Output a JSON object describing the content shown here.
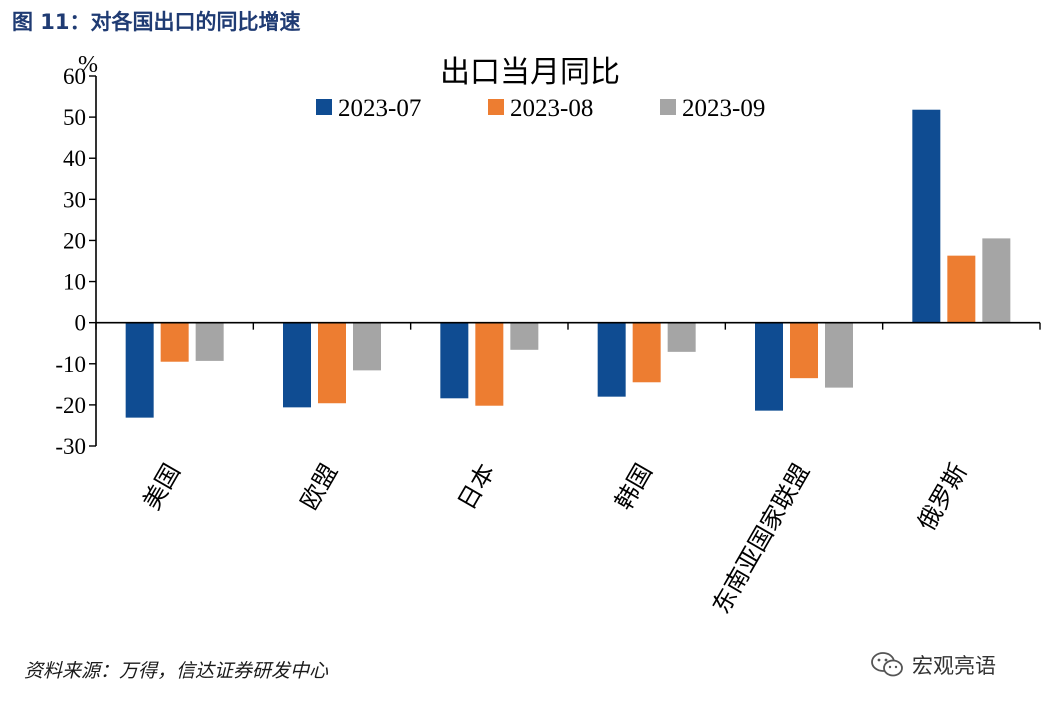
{
  "header": {
    "figure_title": "图 11：对各国出口的同比增速"
  },
  "footer": {
    "source": "资料来源：万得，信达证券研发中心"
  },
  "watermark": {
    "text": "宏观亮语",
    "icon": "wechat-icon"
  },
  "chart_data": {
    "type": "bar",
    "title": "出口当月同比",
    "unit": "%",
    "categories": [
      "美国",
      "欧盟",
      "日本",
      "韩国",
      "东南亚国家联盟",
      "俄罗斯"
    ],
    "series": [
      {
        "name": "2023-07",
        "color": "#0f4c92",
        "values": [
          -23.1,
          -20.6,
          -18.4,
          -18.0,
          -21.4,
          51.8
        ]
      },
      {
        "name": "2023-08",
        "color": "#ed7d31",
        "values": [
          -9.5,
          -19.6,
          -20.2,
          -14.5,
          -13.5,
          16.3
        ]
      },
      {
        "name": "2023-09",
        "color": "#a5a5a5",
        "values": [
          -9.3,
          -11.6,
          -6.6,
          -7.1,
          -15.8,
          20.5
        ]
      }
    ],
    "ylim": [
      -30,
      60
    ],
    "yticks": [
      60,
      50,
      40,
      30,
      20,
      10,
      0,
      -10,
      -20,
      -30
    ],
    "legend_position": "top",
    "grid": false
  }
}
